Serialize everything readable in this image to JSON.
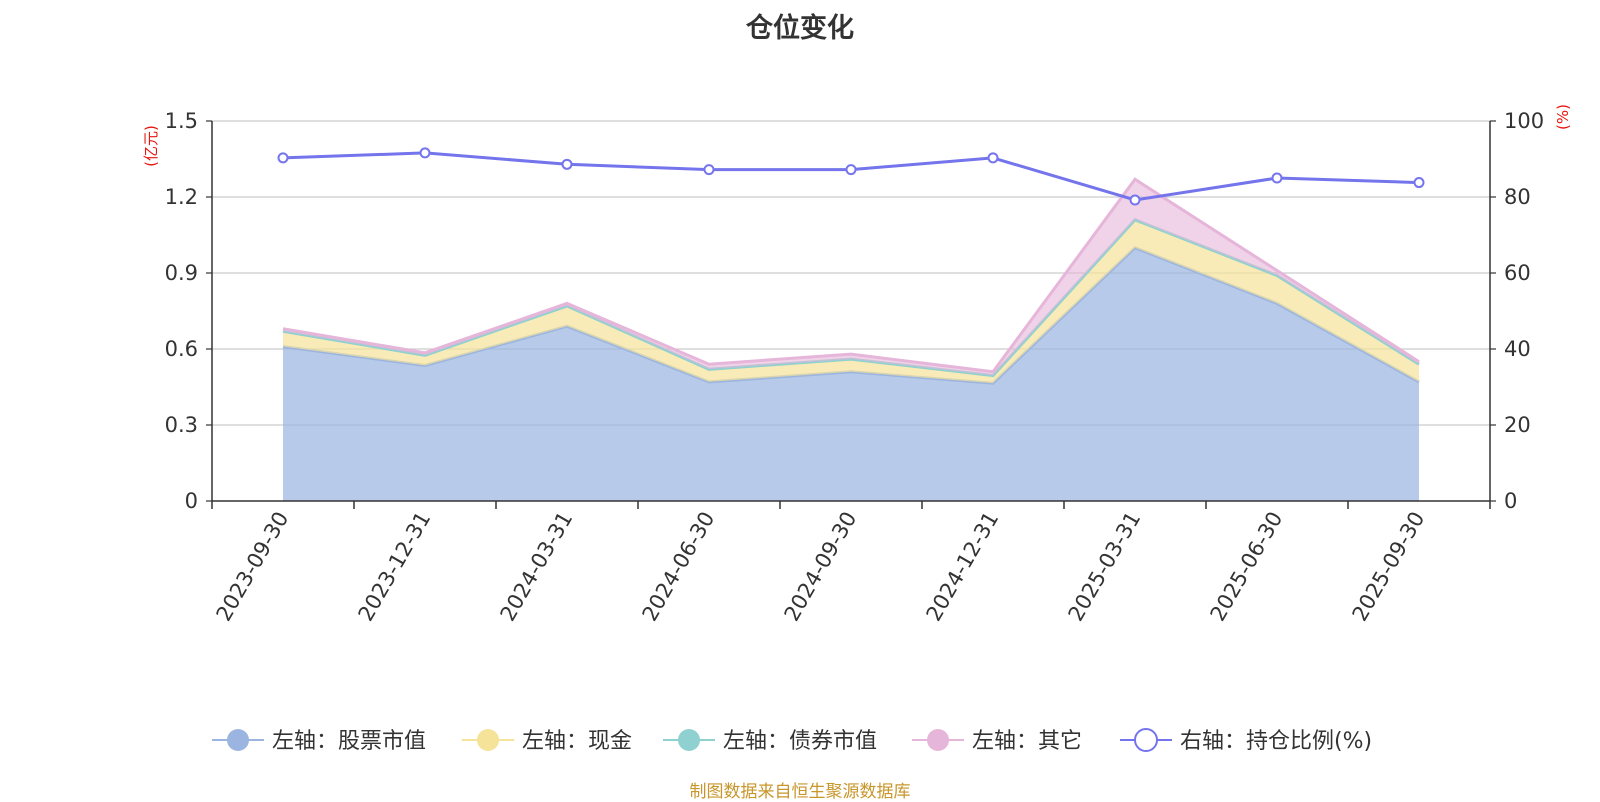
{
  "title": "仓位变化",
  "source": "制图数据来自恒生聚源数据库",
  "colors": {
    "stock": "#9bb5e0",
    "cash": "#f5e39a",
    "bond": "#8fd1d1",
    "other": "#e6b5da",
    "ratio": "#7474ec",
    "axis_unit": "#e8140e",
    "source": "#c8962a"
  },
  "chart_data": {
    "type": "area",
    "title": "仓位变化",
    "categories": [
      "2023-09-30",
      "2023-12-31",
      "2024-03-31",
      "2024-06-30",
      "2024-09-30",
      "2024-12-31",
      "2025-03-31",
      "2025-06-30",
      "2025-09-30"
    ],
    "left_axis": {
      "unit": "(亿元)",
      "ylim": [
        0,
        1.5
      ],
      "ticks": [
        "0",
        "0.3",
        "0.6",
        "0.9",
        "1.2",
        "1.5"
      ]
    },
    "right_axis": {
      "unit": "(%)",
      "ylim": [
        0,
        100
      ],
      "ticks": [
        "0",
        "20",
        "40",
        "60",
        "80",
        "100"
      ]
    },
    "stacked": true,
    "series": [
      {
        "key": "stock",
        "name": "左轴：股票市值",
        "axis": "left",
        "type": "area",
        "values": [
          0.61,
          0.535,
          0.69,
          0.47,
          0.51,
          0.465,
          1.0,
          0.78,
          0.47
        ]
      },
      {
        "key": "cash",
        "name": "左轴：现金",
        "axis": "left",
        "type": "area",
        "values": [
          0.06,
          0.04,
          0.08,
          0.05,
          0.05,
          0.03,
          0.11,
          0.11,
          0.07
        ]
      },
      {
        "key": "bond",
        "name": "左轴：债券市值",
        "axis": "left",
        "type": "area",
        "values": [
          0,
          0,
          0,
          0,
          0,
          0,
          0,
          0,
          0
        ]
      },
      {
        "key": "other",
        "name": "左轴：其它",
        "axis": "left",
        "type": "area",
        "values": [
          0.01,
          0.01,
          0.01,
          0.02,
          0.02,
          0.015,
          0.16,
          0.02,
          0.01
        ]
      },
      {
        "key": "ratio",
        "name": "右轴：持仓比例(%)",
        "axis": "right",
        "type": "line",
        "values": [
          90.3,
          91.6,
          88.6,
          87.2,
          87.2,
          90.3,
          79.2,
          85.0,
          83.8
        ]
      }
    ],
    "legend_position": "bottom",
    "grid": true
  }
}
